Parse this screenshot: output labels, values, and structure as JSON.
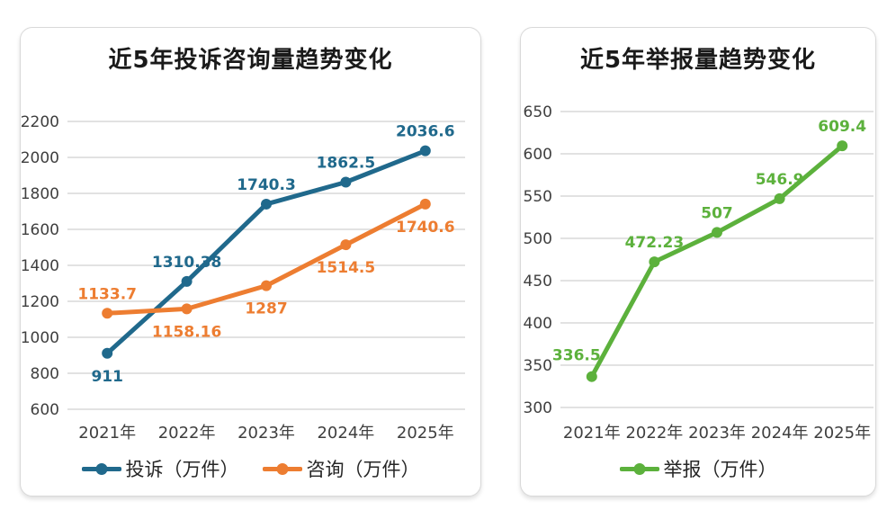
{
  "colors": {
    "background": "#FFFFFF",
    "card_border": "#D9D9D9",
    "grid": "#D9D9D9",
    "tick_label": "#3F3F3F",
    "title": "#1A1A1A",
    "legend_text": "#262626",
    "complaints_blue": "#20698C",
    "consultations_orange": "#ED7D31",
    "reports_green": "#5CB13C"
  },
  "chart_data": [
    {
      "type": "line",
      "title": "近5年投诉咨询量趋势变化",
      "categories": [
        "2021年",
        "2022年",
        "2023年",
        "2024年",
        "2025年"
      ],
      "series": [
        {
          "name": "投诉（万件）",
          "color": "#20698C",
          "values": [
            911,
            1310.38,
            1740.3,
            1862.5,
            2036.6
          ],
          "data_labels": [
            "911",
            "1310.38",
            "1740.3",
            "1862.5",
            "2036.6"
          ],
          "label_positions": [
            "below",
            "above",
            "above",
            "above",
            "above"
          ]
        },
        {
          "name": "咨询（万件）",
          "color": "#ED7D31",
          "values": [
            1133.7,
            1158.16,
            1287,
            1514.5,
            1740.6
          ],
          "data_labels": [
            "1133.7",
            "1158.16",
            "1287",
            "1514.5",
            "1740.6"
          ],
          "label_positions": [
            "above",
            "below",
            "below",
            "below",
            "below"
          ]
        }
      ],
      "xlabel": "",
      "ylabel": "",
      "ylim": [
        600,
        2200
      ],
      "ytick_step": 200,
      "ytick_labels": [
        "600",
        "800",
        "1000",
        "1200",
        "1400",
        "1600",
        "1800",
        "2000",
        "2200"
      ],
      "grid": true,
      "markers": true,
      "legend_position": "bottom"
    },
    {
      "type": "line",
      "title": "近5年举报量趋势变化",
      "categories": [
        "2021年",
        "2022年",
        "2023年",
        "2024年",
        "2025年"
      ],
      "series": [
        {
          "name": "举报（万件）",
          "color": "#5CB13C",
          "values": [
            336.5,
            472.23,
            507,
            546.9,
            609.4
          ],
          "data_labels": [
            "336.5",
            "472.23",
            "507",
            "546.9",
            "609.4"
          ],
          "label_positions": [
            "above-left",
            "above",
            "above",
            "above",
            "above"
          ]
        }
      ],
      "xlabel": "",
      "ylabel": "",
      "ylim": [
        300,
        650
      ],
      "ytick_step": 50,
      "ytick_labels": [
        "300",
        "350",
        "400",
        "450",
        "500",
        "550",
        "600",
        "650"
      ],
      "grid": true,
      "markers": true,
      "legend_position": "bottom"
    }
  ]
}
